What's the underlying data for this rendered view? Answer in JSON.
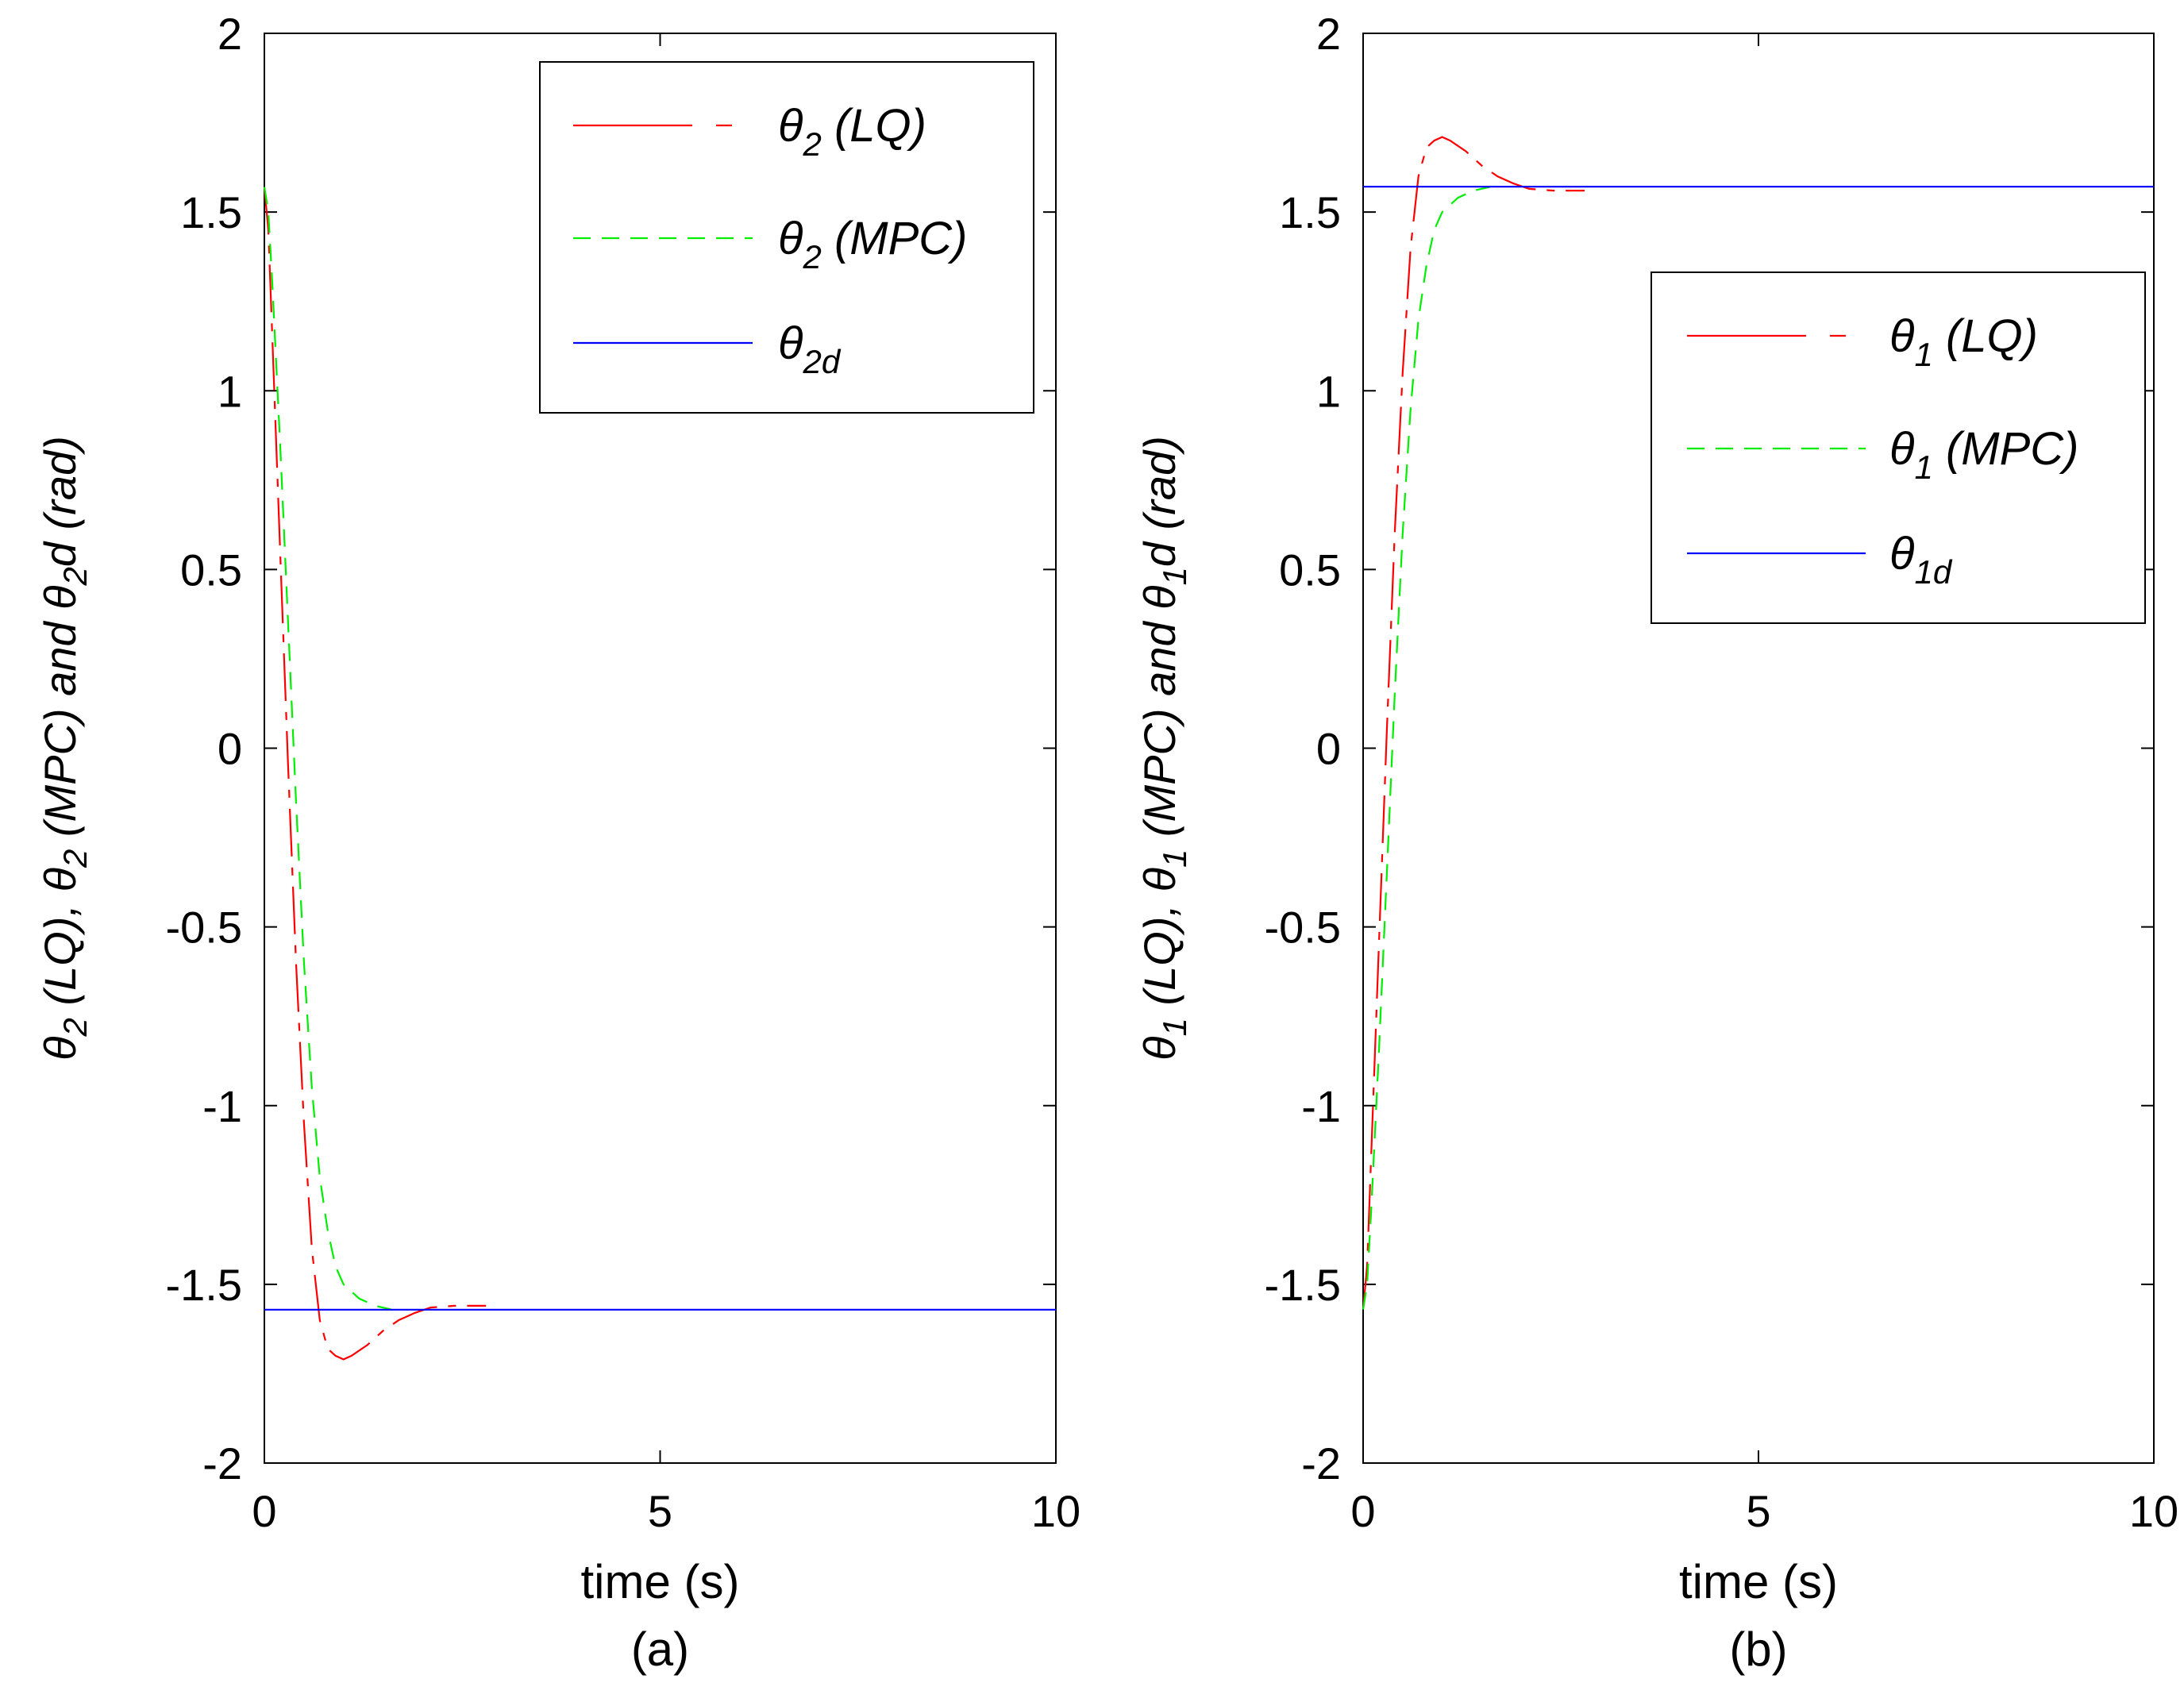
{
  "chart_data": [
    {
      "type": "line",
      "panel_label": "(a)",
      "xlabel": "time (s)",
      "ylabel": {
        "pre": "θ",
        "sub1": "2",
        "mid1": " (LQ),  θ",
        "sub2": "2",
        "mid2": " (MPC) and θ",
        "sub3": "2",
        "post": "d (rad)"
      },
      "xlim": [
        0,
        10
      ],
      "ylim": [
        -2,
        2
      ],
      "xticks": [
        "0",
        "5",
        "10"
      ],
      "yticks": [
        "-2",
        "-1.5",
        "-1",
        "-0.5",
        "0",
        "0.5",
        "1",
        "1.5",
        "2"
      ],
      "legend_position": "top-right",
      "series": [
        {
          "name": "θ2 (LQ)",
          "legend": {
            "sym": "θ",
            "sub": "2",
            "rest": " (LQ)"
          },
          "color": "#ff0000",
          "style": "dashdot",
          "x": [
            0,
            0.05,
            0.1,
            0.2,
            0.3,
            0.4,
            0.5,
            0.6,
            0.7,
            0.8,
            0.9,
            1.0,
            1.1,
            1.3,
            1.5,
            1.7,
            1.9,
            2.1,
            2.4,
            2.8
          ],
          "y": [
            1.57,
            1.45,
            1.15,
            0.55,
            -0.05,
            -0.6,
            -1.05,
            -1.4,
            -1.6,
            -1.68,
            -1.7,
            -1.71,
            -1.7,
            -1.67,
            -1.63,
            -1.6,
            -1.58,
            -1.565,
            -1.56,
            -1.56
          ]
        },
        {
          "name": "θ2 (MPC)",
          "legend": {
            "sym": "θ",
            "sub": "2",
            "rest": " (MPC)"
          },
          "color": "#00ee00",
          "style": "dashed",
          "x": [
            0,
            0.05,
            0.1,
            0.2,
            0.3,
            0.4,
            0.5,
            0.6,
            0.7,
            0.8,
            0.9,
            1.0,
            1.2,
            1.4,
            1.6
          ],
          "y": [
            1.57,
            1.5,
            1.3,
            0.85,
            0.35,
            -0.15,
            -0.6,
            -0.95,
            -1.2,
            -1.35,
            -1.45,
            -1.5,
            -1.54,
            -1.56,
            -1.57
          ]
        },
        {
          "name": "θ2d",
          "legend": {
            "sym": "θ",
            "sub": "2d",
            "rest": ""
          },
          "color": "#0000ff",
          "style": "solid",
          "x": [
            0,
            10
          ],
          "y": [
            -1.5708,
            -1.5708
          ]
        }
      ]
    },
    {
      "type": "line",
      "panel_label": "(b)",
      "xlabel": "time (s)",
      "ylabel": {
        "pre": "θ",
        "sub1": "1",
        "mid1": " (LQ),  θ",
        "sub2": "1",
        "mid2": " (MPC) and θ",
        "sub3": "1",
        "post": "d (rad)"
      },
      "xlim": [
        0,
        10
      ],
      "ylim": [
        -2,
        2
      ],
      "xticks": [
        "0",
        "5",
        "10"
      ],
      "yticks": [
        "-2",
        "-1.5",
        "-1",
        "-0.5",
        "0",
        "0.5",
        "1",
        "1.5",
        "2"
      ],
      "legend_position": "right",
      "series": [
        {
          "name": "θ1 (LQ)",
          "legend": {
            "sym": "θ",
            "sub": "1",
            "rest": " (LQ)"
          },
          "color": "#ff0000",
          "style": "dashdot",
          "x": [
            0,
            0.05,
            0.1,
            0.2,
            0.3,
            0.4,
            0.5,
            0.6,
            0.7,
            0.8,
            0.9,
            1.0,
            1.1,
            1.3,
            1.5,
            1.7,
            1.9,
            2.1,
            2.4,
            2.8
          ],
          "y": [
            -1.57,
            -1.45,
            -1.15,
            -0.55,
            0.05,
            0.6,
            1.05,
            1.4,
            1.6,
            1.68,
            1.7,
            1.71,
            1.7,
            1.67,
            1.63,
            1.6,
            1.58,
            1.565,
            1.56,
            1.56
          ]
        },
        {
          "name": "θ1 (MPC)",
          "legend": {
            "sym": "θ",
            "sub": "1",
            "rest": " (MPC)"
          },
          "color": "#00ee00",
          "style": "dashed",
          "x": [
            0,
            0.05,
            0.1,
            0.2,
            0.3,
            0.4,
            0.5,
            0.6,
            0.7,
            0.8,
            0.9,
            1.0,
            1.2,
            1.4,
            1.6
          ],
          "y": [
            -1.57,
            -1.5,
            -1.3,
            -0.85,
            -0.35,
            0.15,
            0.6,
            0.95,
            1.2,
            1.35,
            1.45,
            1.5,
            1.54,
            1.56,
            1.57
          ]
        },
        {
          "name": "θ1d",
          "legend": {
            "sym": "θ",
            "sub": "1d",
            "rest": ""
          },
          "color": "#0000ff",
          "style": "solid",
          "x": [
            0,
            10
          ],
          "y": [
            1.5708,
            1.5708
          ]
        }
      ]
    }
  ]
}
